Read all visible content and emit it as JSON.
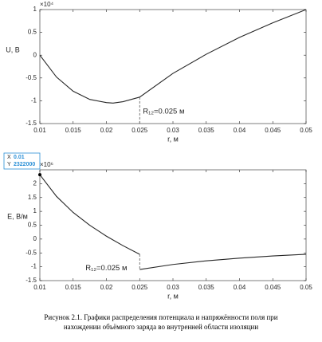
{
  "chart_data": [
    {
      "type": "line",
      "ylabel": "U, В",
      "xlabel": "r, м",
      "y_multiplier": "×10⁴",
      "xlim": [
        0.01,
        0.05
      ],
      "xticks": [
        0.01,
        0.015,
        0.02,
        0.025,
        0.03,
        0.035,
        0.04,
        0.045,
        0.05
      ],
      "ylim": [
        -1.5,
        1
      ],
      "yticks": [
        -1.5,
        -1,
        -0.5,
        0,
        0.5,
        1
      ],
      "series": [
        {
          "color": "#262626",
          "x": [
            0.01,
            0.0125,
            0.015,
            0.0175,
            0.02,
            0.021,
            0.0225,
            0.025,
            0.03,
            0.035,
            0.04,
            0.045,
            0.05
          ],
          "values": [
            0,
            -0.48,
            -0.79,
            -0.97,
            -1.04,
            -1.05,
            -1.02,
            -0.92,
            -0.4,
            0.02,
            0.39,
            0.71,
            1
          ]
        }
      ],
      "marker_x": 0.025,
      "annotation": "R₁₂=0.025 м"
    },
    {
      "type": "line",
      "ylabel": "E, В/м",
      "xlabel": "r, м",
      "y_multiplier": "×10⁶",
      "xlim": [
        0.01,
        0.05
      ],
      "xticks": [
        0.01,
        0.015,
        0.02,
        0.025,
        0.03,
        0.035,
        0.04,
        0.045,
        0.05
      ],
      "ylim": [
        -1.5,
        2.5
      ],
      "yticks": [
        -1.5,
        -1,
        -0.5,
        0,
        0.5,
        1,
        1.5,
        2
      ],
      "series": [
        {
          "color": "#262626",
          "x": [
            0.01,
            0.0125,
            0.015,
            0.0175,
            0.02,
            0.0225,
            0.025
          ],
          "values": [
            2.322,
            1.541,
            0.961,
            0.497,
            0.105,
            -0.239,
            -0.55
          ]
        },
        {
          "color": "#262626",
          "x": [
            0.025,
            0.03,
            0.035,
            0.04,
            0.045,
            0.05
          ],
          "values": [
            -1.1,
            -0.917,
            -0.786,
            -0.688,
            -0.611,
            -0.55
          ]
        }
      ],
      "marker_x": 0.025,
      "annotation": "R₁₂=0.025 м",
      "datatip": {
        "x_label": "X",
        "x": "0.01",
        "y_label": "Y",
        "y": "2322000"
      }
    }
  ],
  "caption": [
    "Рисунок 2.1. Графики распределения потенциала и напряжённости поля при",
    "нахождении объёмного заряда во внутренней области изоляции"
  ]
}
